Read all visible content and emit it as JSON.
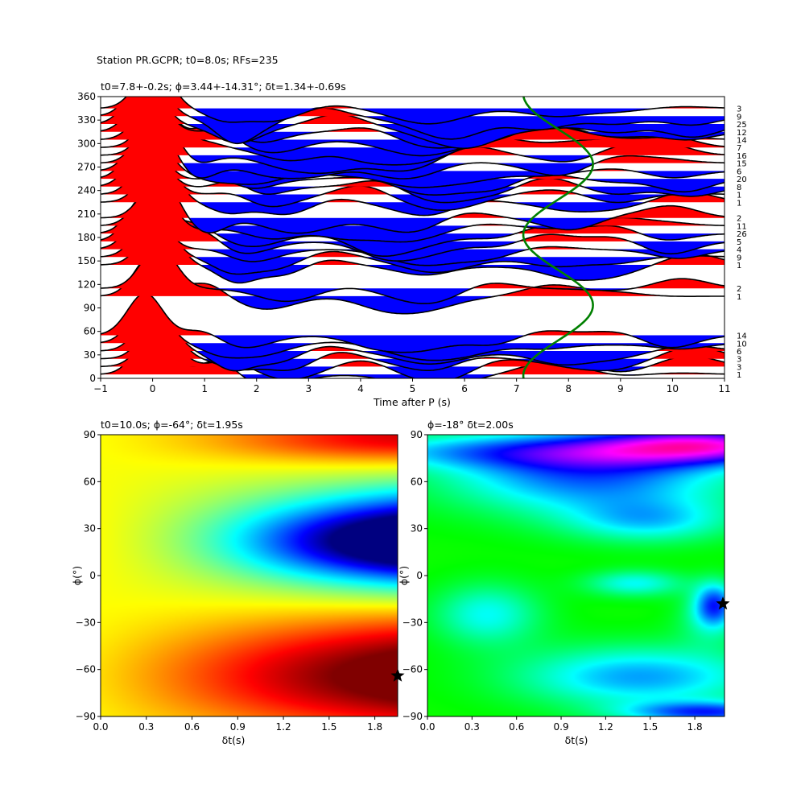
{
  "figure": {
    "suptitle": "Station PR.GCPR; t0=8.0s; RFs=235"
  },
  "chart_data": [
    {
      "type": "line",
      "panel": "receiver-function-wiggles",
      "title": "t0=7.8+-0.2s; ϕ=3.44+-14.31°; δt=1.34+-0.69s",
      "xlabel": "Time after P (s)",
      "ylabel": "",
      "xlim": [
        -1,
        11
      ],
      "ylim": [
        0,
        360
      ],
      "xticks": [
        -1,
        0,
        1,
        2,
        3,
        4,
        5,
        6,
        7,
        8,
        9,
        10,
        11
      ],
      "yticks": [
        0,
        30,
        60,
        90,
        120,
        150,
        180,
        210,
        240,
        270,
        300,
        330,
        360
      ],
      "positive_fill": "#ff0000",
      "negative_fill": "#0000ff",
      "trace_color": "#000000",
      "baz_bins": [
        5,
        15,
        25,
        35,
        45,
        55,
        105,
        115,
        145,
        155,
        165,
        175,
        185,
        195,
        205,
        225,
        235,
        245,
        255,
        265,
        275,
        285,
        295,
        305,
        315,
        325,
        335,
        345
      ],
      "bin_counts": [
        "1",
        "3",
        "3",
        "6",
        "10",
        "14",
        "1",
        "2",
        "1",
        "9",
        "4",
        "5",
        "26",
        "11",
        "2",
        "1",
        "1",
        "8",
        "20",
        "6",
        "15",
        "16",
        "7",
        "14",
        "12",
        "25",
        "9",
        "3"
      ],
      "green_curve": {
        "color": "#008000",
        "description_values": {
          "x_center": 7.8,
          "amplitude_s": 0.67,
          "period_deg": 180,
          "phase_deg": 3.44
        }
      }
    },
    {
      "type": "heatmap",
      "panel": "grid-search-left",
      "title": "t0=10.0s; ϕ=-64°; δt=1.95s",
      "xlabel": "δt(s)",
      "ylabel": "ϕ(°)",
      "xlim": [
        0,
        1.95
      ],
      "ylim": [
        -90,
        90
      ],
      "xticks": [
        "0.0",
        "0.3",
        "0.6",
        "0.9",
        "1.2",
        "1.5",
        "1.8"
      ],
      "yticks": [
        90,
        60,
        30,
        0,
        -30,
        -60,
        -90
      ],
      "colormap": "jet",
      "best": {
        "dt": 1.95,
        "phi": -64
      }
    },
    {
      "type": "heatmap",
      "panel": "grid-search-right",
      "title": "ϕ=-18° δt=2.00s",
      "xlabel": "δt(s)",
      "ylabel": "ϕ(°)",
      "xlim": [
        0,
        2.0
      ],
      "ylim": [
        -90,
        90
      ],
      "xticks": [
        "0.0",
        "0.3",
        "0.6",
        "0.9",
        "1.2",
        "1.5",
        "1.8"
      ],
      "yticks": [
        90,
        60,
        30,
        0,
        -30,
        -60,
        -90
      ],
      "colormap": "hsv",
      "best": {
        "dt": 2.0,
        "phi": -18
      }
    }
  ]
}
